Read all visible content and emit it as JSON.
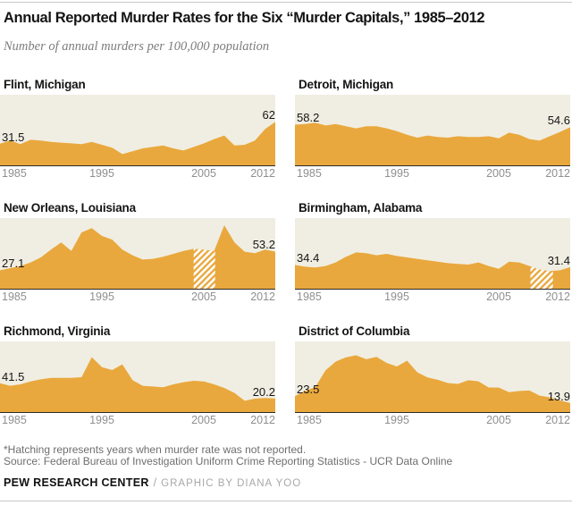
{
  "header": {
    "title": "Annual Reported Murder Rates for the Six “Murder Capitals,” 1985–2012",
    "subtitle": "Number of annual murders per 100,000 population"
  },
  "axis": {
    "ticks": [
      "1985",
      "1995",
      "2005",
      "2012"
    ]
  },
  "colors": {
    "accent": "#E9A83D",
    "plot_bg": "#F0EEE2",
    "baseline": "#2b2b2b",
    "hatch_stripe": "#ffffff"
  },
  "chart_data": {
    "type": "area",
    "x_start": 1985,
    "x_end": 2012,
    "ylim": [
      0,
      100
    ],
    "xticks": [
      1985,
      1995,
      2005,
      2012
    ],
    "grid": false,
    "legend": "none",
    "hatch_meaning": "years when murder rate was not reported",
    "series": [
      {
        "name": "Flint, Michigan",
        "start_label": "31.5",
        "end_label": "62",
        "values": [
          31.5,
          36,
          31,
          37,
          36,
          34,
          33,
          32,
          31,
          34,
          30,
          26,
          17,
          21,
          25,
          27,
          29,
          25,
          22,
          27,
          32,
          38,
          43,
          29,
          30,
          36,
          52,
          62
        ],
        "hatch": null
      },
      {
        "name": "Detroit, Michigan",
        "start_label": "58.2",
        "end_label": "54.6",
        "values": [
          58.2,
          59,
          61,
          57,
          59,
          56,
          53,
          56,
          56,
          53,
          49,
          44,
          40,
          43,
          41,
          40,
          42,
          41,
          41,
          42,
          39,
          47,
          44,
          38,
          36,
          42,
          48,
          54.6
        ],
        "hatch": null
      },
      {
        "name": "New Orleans, Louisiana",
        "start_label": "27.1",
        "end_label": "53.2",
        "values": [
          27.1,
          30,
          33,
          38,
          45,
          56,
          66,
          54,
          80,
          86,
          75,
          70,
          56,
          48,
          42,
          43,
          46,
          50,
          54,
          57,
          56,
          54,
          90,
          66,
          53,
          51,
          56,
          53.2
        ],
        "hatch": {
          "from": 2004.0,
          "to": 2006.1
        }
      },
      {
        "name": "Birmingham, Alabama",
        "start_label": "34.4",
        "end_label": "31.4",
        "values": [
          34.4,
          32,
          31,
          33,
          38,
          46,
          52,
          51,
          48,
          50,
          47,
          45,
          43,
          41,
          39,
          37,
          36,
          35,
          38,
          33,
          29,
          39,
          38,
          33,
          28,
          26,
          27,
          31.4
        ],
        "hatch": {
          "from": 2008.1,
          "to": 2010.3
        }
      },
      {
        "name": "Richmond, Virginia",
        "start_label": "41.5",
        "end_label": "20.2",
        "values": [
          41.5,
          38,
          40,
          44,
          47,
          49,
          49,
          49,
          50,
          78,
          64,
          60,
          68,
          46,
          38,
          37,
          36,
          40,
          43,
          45,
          44,
          40,
          35,
          28,
          17,
          20,
          21,
          20.2
        ],
        "hatch": null
      },
      {
        "name": "District of Columbia",
        "start_label": "23.5",
        "end_label": "13.9",
        "values": [
          23.5,
          31,
          36.2,
          59.5,
          71.9,
          77.8,
          80.6,
          75.2,
          78.5,
          70,
          65,
          73.1,
          56.9,
          49.7,
          46.4,
          41.8,
          40.6,
          45.8,
          44.2,
          35.7,
          35.4,
          29.1,
          30.8,
          31.4,
          24.2,
          21.9,
          17.5,
          13.9
        ],
        "hatch": null
      }
    ]
  },
  "footer": {
    "note": "*Hatching represents years when murder rate was not reported.",
    "source": "Source: Federal Bureau of Investigation Uniform Crime Reporting Statistics - UCR Data Online",
    "brand": "PEW RESEARCH CENTER",
    "divider": "/",
    "credit": "GRAPHIC BY DIANA YOO"
  }
}
